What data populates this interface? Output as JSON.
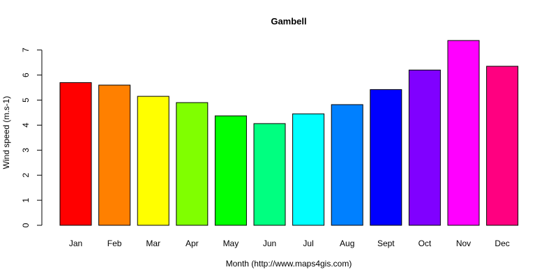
{
  "chart_data": {
    "type": "bar",
    "title": "Gambell",
    "xlabel": "Month (http://www.maps4gis.com)",
    "ylabel": "Wind speed (m.s-1)",
    "ylim": [
      0,
      7
    ],
    "yticks": [
      0,
      1,
      2,
      3,
      4,
      5,
      6,
      7
    ],
    "grid": false,
    "categories": [
      "Jan",
      "Feb",
      "Mar",
      "Apr",
      "May",
      "Jun",
      "Jul",
      "Aug",
      "Sept",
      "Oct",
      "Nov",
      "Dec"
    ],
    "values": [
      5.7,
      5.6,
      5.15,
      4.9,
      4.37,
      4.06,
      4.45,
      4.82,
      5.42,
      6.2,
      7.38,
      6.35
    ],
    "colors": [
      "#FF0000",
      "#FF8000",
      "#FFFF00",
      "#80FF00",
      "#00FF00",
      "#00FF80",
      "#00FFFF",
      "#0080FF",
      "#0000FF",
      "#8000FF",
      "#FF00FF",
      "#FF0080"
    ]
  }
}
